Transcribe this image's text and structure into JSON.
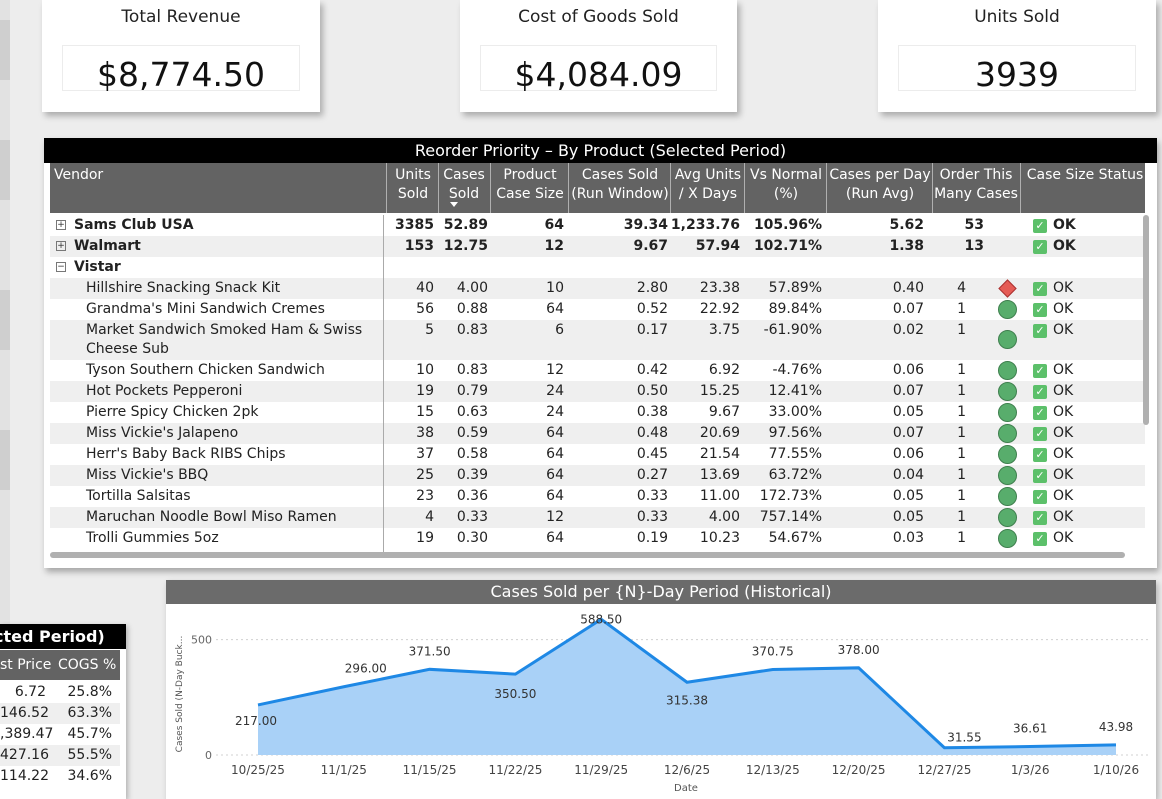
{
  "kpis": {
    "revenue": {
      "label": "Total Revenue",
      "value": "$8,774.50"
    },
    "cogs": {
      "label": "Cost of Goods Sold",
      "value": "$4,084.09"
    },
    "units": {
      "label": "Units Sold",
      "value": "3939"
    }
  },
  "reorder": {
    "title": "Reorder Priority – By Product (Selected Period)",
    "headers": {
      "vendor": "Vendor",
      "units_sold": [
        "Units",
        "Sold"
      ],
      "cases_sold": [
        "Cases",
        "Sold"
      ],
      "product_case_size": [
        "Product",
        "Case Size"
      ],
      "cases_sold_run": [
        "Cases Sold",
        "(Run Window)"
      ],
      "avg_units": [
        "Avg Units",
        "/ X Days"
      ],
      "vs_normal": [
        "Vs Normal",
        "(%)"
      ],
      "cases_per_day": [
        "Cases per Day",
        "(Run Avg)"
      ],
      "order_cases": [
        "Order This",
        "Many Cases"
      ],
      "case_size_status": "Case Size Status"
    },
    "groups": [
      {
        "name": "Sams Club USA",
        "units": "3385",
        "cases": "52.89",
        "case_size": "64",
        "cases_run": "39.34",
        "avg_units": "1,233.76",
        "vs_normal": "105.96%",
        "per_day": "5.62",
        "order": "53",
        "status": "OK"
      },
      {
        "name": "Walmart",
        "units": "153",
        "cases": "12.75",
        "case_size": "12",
        "cases_run": "9.67",
        "avg_units": "57.94",
        "vs_normal": "102.71%",
        "per_day": "1.38",
        "order": "13",
        "status": "OK"
      },
      {
        "name": "Vistar"
      }
    ],
    "items": [
      {
        "name": "Hillshire Snacking Snack Kit",
        "units": "40",
        "cases": "4.00",
        "case_size": "10",
        "cases_run": "2.80",
        "avg_units": "23.38",
        "vs_normal": "57.89%",
        "per_day": "0.40",
        "order": "4",
        "indicator": "red-diamond",
        "status": "OK"
      },
      {
        "name": "Grandma's Mini Sandwich Cremes",
        "units": "56",
        "cases": "0.88",
        "case_size": "64",
        "cases_run": "0.52",
        "avg_units": "22.92",
        "vs_normal": "89.84%",
        "per_day": "0.07",
        "order": "1",
        "indicator": "green-circle",
        "status": "OK"
      },
      {
        "name": "Market Sandwich Smoked Ham & Swiss",
        "name2": "Cheese Sub",
        "units": "5",
        "cases": "0.83",
        "case_size": "6",
        "cases_run": "0.17",
        "avg_units": "3.75",
        "vs_normal": "-61.90%",
        "per_day": "0.02",
        "order": "1",
        "indicator": "green-circle",
        "status": "OK"
      },
      {
        "name": "Tyson Southern Chicken Sandwich",
        "units": "10",
        "cases": "0.83",
        "case_size": "12",
        "cases_run": "0.42",
        "avg_units": "6.92",
        "vs_normal": "-4.76%",
        "per_day": "0.06",
        "order": "1",
        "indicator": "green-circle",
        "status": "OK"
      },
      {
        "name": "Hot Pockets Pepperoni",
        "units": "19",
        "cases": "0.79",
        "case_size": "24",
        "cases_run": "0.50",
        "avg_units": "15.25",
        "vs_normal": "12.41%",
        "per_day": "0.07",
        "order": "1",
        "indicator": "green-circle",
        "status": "OK"
      },
      {
        "name": "Pierre Spicy Chicken 2pk",
        "units": "15",
        "cases": "0.63",
        "case_size": "24",
        "cases_run": "0.38",
        "avg_units": "9.67",
        "vs_normal": "33.00%",
        "per_day": "0.05",
        "order": "1",
        "indicator": "green-circle",
        "status": "OK"
      },
      {
        "name": "Miss Vickie's Jalapeno",
        "units": "38",
        "cases": "0.59",
        "case_size": "64",
        "cases_run": "0.48",
        "avg_units": "20.69",
        "vs_normal": "97.56%",
        "per_day": "0.07",
        "order": "1",
        "indicator": "green-circle",
        "status": "OK"
      },
      {
        "name": "Herr's Baby Back RIBS Chips",
        "units": "37",
        "cases": "0.58",
        "case_size": "64",
        "cases_run": "0.45",
        "avg_units": "21.54",
        "vs_normal": "77.55%",
        "per_day": "0.06",
        "order": "1",
        "indicator": "green-circle",
        "status": "OK"
      },
      {
        "name": "Miss Vickie's BBQ",
        "units": "25",
        "cases": "0.39",
        "case_size": "64",
        "cases_run": "0.27",
        "avg_units": "13.69",
        "vs_normal": "63.72%",
        "per_day": "0.04",
        "order": "1",
        "indicator": "green-circle",
        "status": "OK"
      },
      {
        "name": "Tortilla Salsitas",
        "units": "23",
        "cases": "0.36",
        "case_size": "64",
        "cases_run": "0.33",
        "avg_units": "11.00",
        "vs_normal": "172.73%",
        "per_day": "0.05",
        "order": "1",
        "indicator": "green-circle",
        "status": "OK"
      },
      {
        "name": "Maruchan Noodle Bowl Miso Ramen",
        "units": "4",
        "cases": "0.33",
        "case_size": "12",
        "cases_run": "0.33",
        "avg_units": "4.00",
        "vs_normal": "757.14%",
        "per_day": "0.05",
        "order": "1",
        "indicator": "green-circle",
        "status": "OK"
      },
      {
        "name": "Trolli Gummies 5oz",
        "units": "19",
        "cases": "0.30",
        "case_size": "64",
        "cases_run": "0.19",
        "avg_units": "10.23",
        "vs_normal": "54.67%",
        "per_day": "0.03",
        "order": "1",
        "indicator": "green-circle",
        "status": "OK"
      }
    ]
  },
  "left_table": {
    "title": "cted Period)",
    "headers": [
      "st Price",
      "COGS %"
    ],
    "rows": [
      [
        "6.72",
        "25.8%"
      ],
      [
        "146.52",
        "63.3%"
      ],
      [
        ",389.47",
        "45.7%"
      ],
      [
        "427.16",
        "55.5%"
      ],
      [
        "114.22",
        "34.6%"
      ]
    ]
  },
  "chart_data": {
    "type": "area",
    "title": "Cases Sold per {N}-Day Period (Historical)",
    "xlabel": "Date",
    "ylabel": "Cases Sold (N-Day Buck...",
    "categories": [
      "10/25/25",
      "11/1/25",
      "11/15/25",
      "11/22/25",
      "11/29/25",
      "12/6/25",
      "12/13/25",
      "12/20/25",
      "12/27/25",
      "1/3/26",
      "1/10/26"
    ],
    "values": [
      217.0,
      296.0,
      371.5,
      350.5,
      588.5,
      315.38,
      370.75,
      378.0,
      31.55,
      36.61,
      43.98
    ],
    "labels": [
      "217.00",
      "296.00",
      "371.50",
      "350.50",
      "588.50",
      "315.38",
      "370.75",
      "378.00",
      "31.55",
      "36.61",
      "43.98"
    ],
    "yticks": [
      "0",
      "500"
    ],
    "ylim": [
      0,
      620
    ],
    "colors": {
      "line": "#1e88e5",
      "fill": "#a9d1f7"
    }
  }
}
